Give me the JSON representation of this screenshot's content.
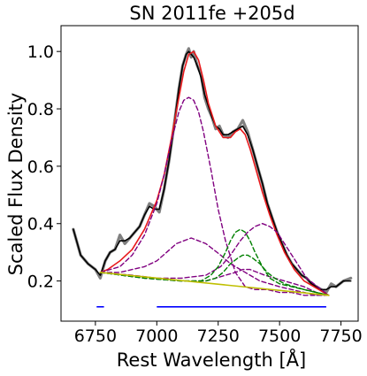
{
  "chart_data": {
    "type": "line",
    "title": "SN 2011fe  +205d",
    "xlabel": "Rest Wavelength [Å]",
    "ylabel": "Scaled Flux Density",
    "xlim": [
      6610,
      7820
    ],
    "ylim": [
      0.06,
      1.09
    ],
    "xticks": [
      6750,
      7000,
      7250,
      7500,
      7750
    ],
    "yticks": [
      0.2,
      0.4,
      0.6,
      0.8,
      1.0
    ],
    "xtick_labels": [
      "6750",
      "7000",
      "7250",
      "7500",
      "7750"
    ],
    "ytick_labels": [
      "0.2",
      "0.4",
      "0.6",
      "0.8",
      "1.0"
    ],
    "grid": false,
    "series": [
      {
        "role": "observed-raw",
        "color": "#808080",
        "x": [
          6660,
          6690,
          6720,
          6750,
          6770,
          6790,
          6810,
          6830,
          6850,
          6870,
          6890,
          6910,
          6930,
          6950,
          6970,
          6990,
          7010,
          7030,
          7050,
          7070,
          7090,
          7105,
          7120,
          7130,
          7140,
          7150,
          7165,
          7180,
          7195,
          7210,
          7225,
          7240,
          7255,
          7270,
          7290,
          7310,
          7330,
          7350,
          7370,
          7390,
          7410,
          7430,
          7450,
          7470,
          7490,
          7510,
          7530,
          7550,
          7570,
          7590,
          7610,
          7630,
          7650,
          7670,
          7690,
          7710,
          7730,
          7760,
          7790
        ],
        "y": [
          0.38,
          0.29,
          0.26,
          0.24,
          0.21,
          0.27,
          0.3,
          0.31,
          0.36,
          0.33,
          0.35,
          0.37,
          0.39,
          0.43,
          0.47,
          0.46,
          0.44,
          0.52,
          0.62,
          0.74,
          0.87,
          0.95,
          0.99,
          1.01,
          0.98,
          1.0,
          0.95,
          0.92,
          0.84,
          0.8,
          0.77,
          0.73,
          0.74,
          0.71,
          0.7,
          0.72,
          0.73,
          0.76,
          0.72,
          0.66,
          0.6,
          0.54,
          0.47,
          0.42,
          0.37,
          0.33,
          0.29,
          0.26,
          0.24,
          0.22,
          0.21,
          0.19,
          0.18,
          0.17,
          0.16,
          0.19,
          0.18,
          0.2,
          0.21
        ]
      },
      {
        "role": "observed-smoothed",
        "color": "#000000",
        "x": [
          6660,
          6690,
          6720,
          6750,
          6770,
          6790,
          6810,
          6830,
          6850,
          6870,
          6890,
          6910,
          6930,
          6950,
          6970,
          6990,
          7010,
          7030,
          7050,
          7070,
          7090,
          7105,
          7120,
          7130,
          7140,
          7150,
          7165,
          7180,
          7195,
          7210,
          7225,
          7240,
          7255,
          7270,
          7290,
          7310,
          7330,
          7350,
          7370,
          7390,
          7410,
          7430,
          7450,
          7470,
          7490,
          7510,
          7530,
          7550,
          7570,
          7590,
          7610,
          7630,
          7650,
          7670,
          7690,
          7710,
          7730,
          7760,
          7790
        ],
        "y": [
          0.38,
          0.29,
          0.26,
          0.24,
          0.22,
          0.27,
          0.3,
          0.31,
          0.34,
          0.34,
          0.35,
          0.37,
          0.39,
          0.43,
          0.46,
          0.45,
          0.45,
          0.52,
          0.62,
          0.74,
          0.87,
          0.95,
          0.99,
          1.0,
          0.99,
          0.98,
          0.95,
          0.91,
          0.85,
          0.81,
          0.77,
          0.74,
          0.73,
          0.71,
          0.71,
          0.72,
          0.73,
          0.74,
          0.71,
          0.66,
          0.6,
          0.54,
          0.47,
          0.42,
          0.37,
          0.33,
          0.29,
          0.26,
          0.24,
          0.22,
          0.21,
          0.19,
          0.18,
          0.17,
          0.17,
          0.18,
          0.18,
          0.2,
          0.2
        ]
      },
      {
        "role": "model-total",
        "color": "#e8191c",
        "x": [
          6770,
          6800,
          6850,
          6900,
          6950,
          7000,
          7030,
          7060,
          7090,
          7110,
          7130,
          7150,
          7170,
          7190,
          7210,
          7240,
          7270,
          7300,
          7320,
          7340,
          7360,
          7380,
          7400,
          7430,
          7460,
          7490,
          7520,
          7560,
          7600,
          7640,
          7680,
          7700
        ],
        "y": [
          0.23,
          0.24,
          0.27,
          0.31,
          0.38,
          0.48,
          0.57,
          0.7,
          0.84,
          0.93,
          0.99,
          1.0,
          0.97,
          0.9,
          0.82,
          0.74,
          0.7,
          0.7,
          0.72,
          0.73,
          0.71,
          0.66,
          0.6,
          0.51,
          0.43,
          0.36,
          0.3,
          0.24,
          0.2,
          0.18,
          0.16,
          0.15
        ]
      },
      {
        "role": "gaussian-component",
        "color": "#800080",
        "x": [
          6770,
          6850,
          6900,
          6950,
          7000,
          7030,
          7060,
          7090,
          7110,
          7130,
          7150,
          7170,
          7190,
          7220,
          7250,
          7280,
          7320,
          7360,
          7400,
          7450,
          7500,
          7550,
          7600,
          7650,
          7700
        ],
        "y": [
          0.23,
          0.25,
          0.29,
          0.36,
          0.47,
          0.57,
          0.69,
          0.79,
          0.83,
          0.84,
          0.83,
          0.79,
          0.72,
          0.59,
          0.45,
          0.34,
          0.23,
          0.18,
          0.17,
          0.17,
          0.16,
          0.16,
          0.15,
          0.15,
          0.15
        ]
      },
      {
        "role": "gaussian-component",
        "color": "#800080",
        "x": [
          6770,
          6850,
          6900,
          6950,
          7000,
          7040,
          7080,
          7110,
          7140,
          7170,
          7200,
          7230,
          7260,
          7300,
          7340,
          7380,
          7420,
          7460,
          7500,
          7550,
          7600,
          7650,
          7700
        ],
        "y": [
          0.23,
          0.23,
          0.24,
          0.25,
          0.27,
          0.3,
          0.33,
          0.34,
          0.35,
          0.34,
          0.33,
          0.31,
          0.29,
          0.26,
          0.24,
          0.22,
          0.2,
          0.19,
          0.18,
          0.17,
          0.16,
          0.15,
          0.15
        ]
      },
      {
        "role": "gaussian-component",
        "color": "#800080",
        "x": [
          6770,
          6900,
          7000,
          7100,
          7200,
          7260,
          7300,
          7340,
          7370,
          7400,
          7430,
          7460,
          7490,
          7520,
          7550,
          7580,
          7610,
          7640,
          7670,
          7700
        ],
        "y": [
          0.23,
          0.22,
          0.21,
          0.21,
          0.22,
          0.25,
          0.29,
          0.34,
          0.37,
          0.39,
          0.4,
          0.39,
          0.37,
          0.33,
          0.29,
          0.25,
          0.21,
          0.19,
          0.17,
          0.15
        ]
      },
      {
        "role": "gaussian-component",
        "color": "#800080",
        "x": [
          6770,
          6950,
          7100,
          7200,
          7240,
          7280,
          7320,
          7350,
          7380,
          7410,
          7440,
          7480,
          7520,
          7560,
          7600,
          7650,
          7700
        ],
        "y": [
          0.23,
          0.21,
          0.2,
          0.2,
          0.21,
          0.22,
          0.23,
          0.24,
          0.24,
          0.23,
          0.22,
          0.21,
          0.2,
          0.19,
          0.18,
          0.16,
          0.15
        ]
      },
      {
        "role": "gaussian-component",
        "color": "#008000",
        "x": [
          6770,
          6950,
          7100,
          7180,
          7220,
          7250,
          7280,
          7300,
          7320,
          7340,
          7360,
          7380,
          7400,
          7430,
          7460,
          7500,
          7550,
          7600,
          7650,
          7700
        ],
        "y": [
          0.23,
          0.21,
          0.2,
          0.2,
          0.22,
          0.25,
          0.3,
          0.34,
          0.37,
          0.38,
          0.37,
          0.34,
          0.3,
          0.25,
          0.21,
          0.19,
          0.18,
          0.17,
          0.16,
          0.15
        ]
      },
      {
        "role": "gaussian-component",
        "color": "#008000",
        "x": [
          6770,
          6950,
          7100,
          7200,
          7240,
          7270,
          7300,
          7330,
          7350,
          7370,
          7390,
          7420,
          7450,
          7480,
          7520,
          7560,
          7600,
          7650,
          7700
        ],
        "y": [
          0.23,
          0.21,
          0.2,
          0.2,
          0.21,
          0.23,
          0.26,
          0.28,
          0.29,
          0.29,
          0.28,
          0.26,
          0.23,
          0.21,
          0.19,
          0.18,
          0.17,
          0.16,
          0.15
        ]
      },
      {
        "role": "continuum",
        "color": "#bfbf00",
        "x": [
          6770,
          7700
        ],
        "y": [
          0.23,
          0.15
        ]
      }
    ],
    "markers": [
      {
        "role": "continuum-region",
        "color": "#0000ff",
        "x": [
          6755,
          6785
        ],
        "y": 0.11
      },
      {
        "role": "continuum-region",
        "color": "#0000ff",
        "x": [
          7000,
          7690
        ],
        "y": 0.11
      }
    ]
  }
}
